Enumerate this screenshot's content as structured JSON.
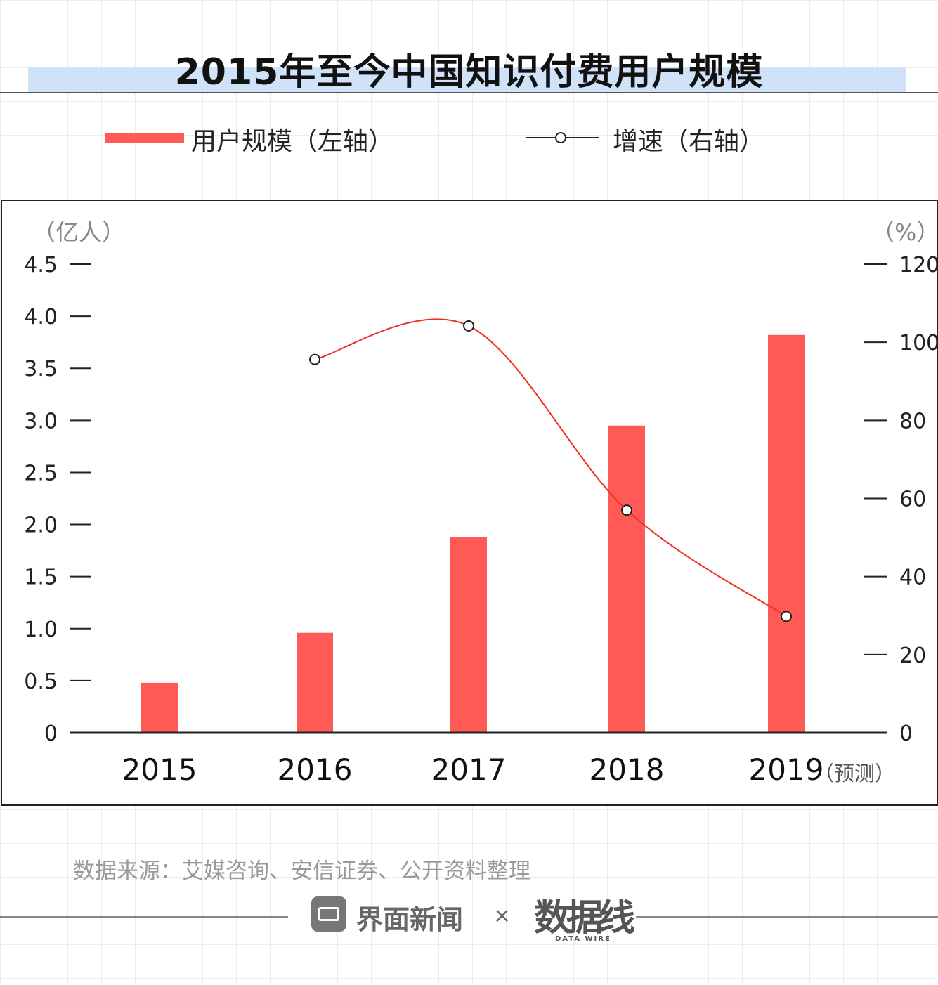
{
  "title": "2015年至今中国知识付费用户规模",
  "legend": {
    "bar_label": "用户规模（左轴）",
    "line_label": "增速（右轴）"
  },
  "units": {
    "left": "（亿人）",
    "right": "（%）"
  },
  "forecast_note": "（预测）",
  "source": "数据来源：艾媒咨询、安信证券、公开资料整理",
  "footer": {
    "brand": "界面新闻",
    "separator": "×",
    "logo": "数据线",
    "logo_sub": "DATA WIRE"
  },
  "colors": {
    "bar": "#ff5a55",
    "line": "#f03025",
    "title_band": "#cfe2f7"
  },
  "chart_data": {
    "type": "bar",
    "categories": [
      "2015",
      "2016",
      "2017",
      "2018",
      "2019"
    ],
    "series": [
      {
        "name": "用户规模（左轴）",
        "type": "bar",
        "axis": "left",
        "values": [
          0.48,
          0.96,
          1.88,
          2.95,
          3.82
        ]
      },
      {
        "name": "增速（右轴）",
        "type": "line",
        "axis": "right",
        "values": [
          null,
          95.6,
          104.2,
          57.0,
          29.8
        ]
      }
    ],
    "left_axis": {
      "ticks": [
        "0",
        "0.5",
        "1.0",
        "1.5",
        "2.0",
        "2.5",
        "3.0",
        "3.5",
        "4.0",
        "4.5"
      ],
      "ylim": [
        0,
        4.5
      ]
    },
    "right_axis": {
      "ticks": [
        "0",
        "20",
        "40",
        "60",
        "80",
        "100",
        "120"
      ],
      "ylim": [
        0,
        120
      ]
    },
    "grid": false,
    "legend_position": "top"
  }
}
